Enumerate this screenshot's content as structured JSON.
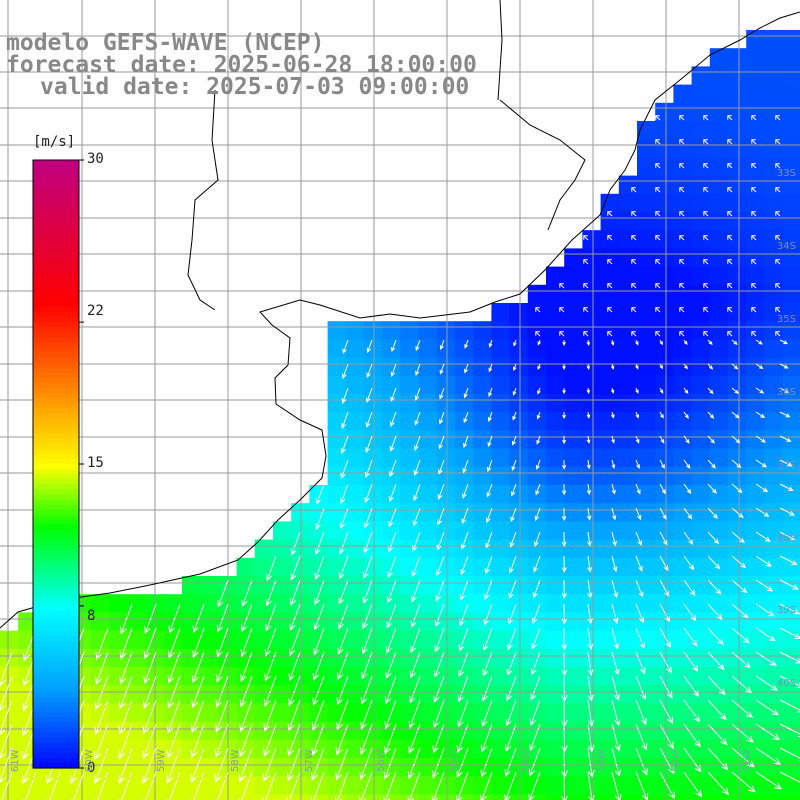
{
  "title": {
    "line1": "modelo GEFS-WAVE (NCEP)",
    "line2": "forecast date: 2025-06-28 18:00:00",
    "line3": "valid date: 2025-07-03 09:00:00"
  },
  "colorbar": {
    "unit": "[m/s]",
    "ticks": [
      "30",
      "22",
      "15",
      "8",
      "0"
    ],
    "tick_values": [
      30,
      22,
      15,
      8,
      0
    ],
    "range": [
      0,
      30
    ],
    "colors": [
      "#0000ff",
      "#00a0ff",
      "#00ffff",
      "#00ff00",
      "#ffff00",
      "#ff8000",
      "#ff0000",
      "#c0007f"
    ]
  },
  "map": {
    "variable": "wind speed",
    "land_color": "#ffffff",
    "grid_color": "#999999",
    "arrow_color": "#ffffff",
    "lat_labels": [
      "33S",
      "34S",
      "35S",
      "36S",
      "37S",
      "38S",
      "39S",
      "40S"
    ],
    "lon_labels": [
      "61W",
      "60W",
      "59W",
      "58W",
      "57W",
      "56W",
      "55W",
      "54W",
      "53W",
      "52W",
      "51W"
    ]
  }
}
